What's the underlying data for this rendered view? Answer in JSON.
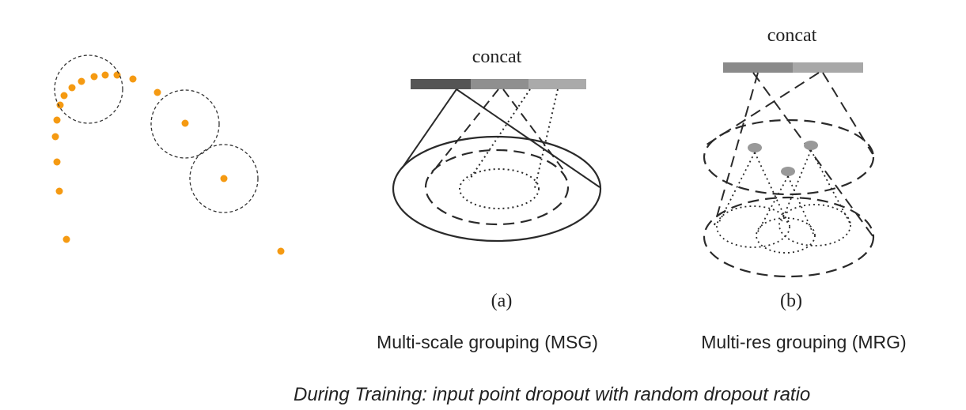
{
  "msg": {
    "concat_label": "concat",
    "sub_label": "(a)",
    "caption": "Multi-scale grouping (MSG)"
  },
  "mrg": {
    "concat_label": "concat",
    "sub_label": "(b)",
    "caption": "Multi-res grouping (MRG)"
  },
  "footer": "During Training: input point dropout with random dropout ratio",
  "colors": {
    "points": "#f59a12",
    "bar_dark": "#555555",
    "bar_mid": "#8f8f8f",
    "bar_light": "#aaaaaa",
    "stroke": "#2a2a2a"
  }
}
